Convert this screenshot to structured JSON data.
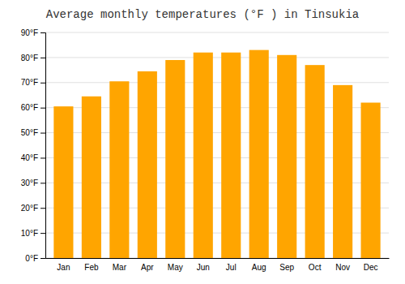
{
  "chart_data": {
    "type": "bar",
    "title": "Average monthly temperatures (°F ) in Tinsukia",
    "categories": [
      "Jan",
      "Feb",
      "Mar",
      "Apr",
      "May",
      "Jun",
      "Jul",
      "Aug",
      "Sep",
      "Oct",
      "Nov",
      "Dec"
    ],
    "values": [
      60.5,
      64.5,
      70.5,
      74.5,
      79,
      82,
      82,
      83,
      81,
      77,
      69,
      62
    ],
    "color": "#FFA500",
    "ylim": [
      0,
      90
    ],
    "yticks": [
      {
        "value": 0,
        "label": "0°F"
      },
      {
        "value": 10,
        "label": "10°F"
      },
      {
        "value": 20,
        "label": "20°F"
      },
      {
        "value": 30,
        "label": "30°F"
      },
      {
        "value": 40,
        "label": "40°F"
      },
      {
        "value": 50,
        "label": "50°F"
      },
      {
        "value": 60,
        "label": "60°F"
      },
      {
        "value": 70,
        "label": "70°F"
      },
      {
        "value": 80,
        "label": "80°F"
      },
      {
        "value": 90,
        "label": "90°F"
      }
    ],
    "grid": true
  }
}
